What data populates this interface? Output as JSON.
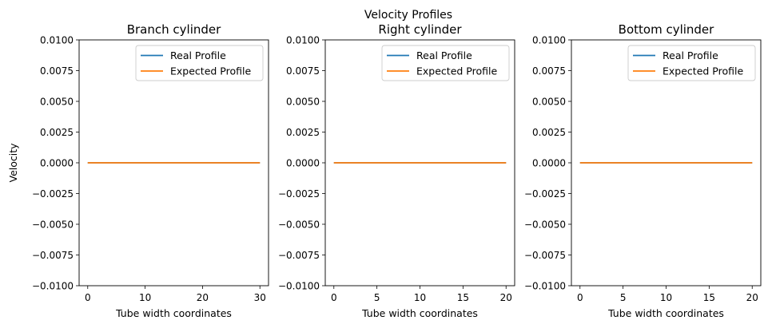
{
  "figure": {
    "suptitle": "Velocity Profiles"
  },
  "legend_labels": [
    "Real Profile",
    "Expected Profile"
  ],
  "colors": {
    "real": "#1f77b4",
    "expected": "#ff7f0e"
  },
  "chart_data": [
    {
      "type": "line",
      "title": "Branch cylinder",
      "xlabel": "Tube width coordinates",
      "ylabel": "Velocity",
      "xlim": [
        -1.5,
        31.5
      ],
      "ylim": [
        -0.01,
        0.01
      ],
      "xticks": [
        0,
        10,
        20,
        30
      ],
      "yticks": [
        -0.01,
        -0.0075,
        -0.005,
        -0.0025,
        0.0,
        0.0025,
        0.005,
        0.0075,
        0.01
      ],
      "ytick_labels": [
        "−0.0100",
        "−0.0075",
        "−0.0050",
        "−0.0025",
        "0.0000",
        "0.0025",
        "0.0050",
        "0.0075",
        "0.0100"
      ],
      "grid": false,
      "legend": "upper-right",
      "series": [
        {
          "name": "Real Profile",
          "color": "#1f77b4",
          "x": [
            0,
            30
          ],
          "y": [
            0,
            0
          ]
        },
        {
          "name": "Expected Profile",
          "color": "#ff7f0e",
          "x": [
            0,
            30
          ],
          "y": [
            0,
            0
          ]
        }
      ]
    },
    {
      "type": "line",
      "title": "Right cylinder",
      "xlabel": "Tube width coordinates",
      "ylabel": "",
      "xlim": [
        -1,
        21
      ],
      "ylim": [
        -0.01,
        0.01
      ],
      "xticks": [
        0,
        5,
        10,
        15,
        20
      ],
      "yticks": [
        -0.01,
        -0.0075,
        -0.005,
        -0.0025,
        0.0,
        0.0025,
        0.005,
        0.0075,
        0.01
      ],
      "ytick_labels": [
        "−0.0100",
        "−0.0075",
        "−0.0050",
        "−0.0025",
        "0.0000",
        "0.0025",
        "0.0050",
        "0.0075",
        "0.0100"
      ],
      "grid": false,
      "legend": "upper-right",
      "series": [
        {
          "name": "Real Profile",
          "color": "#1f77b4",
          "x": [
            0,
            20
          ],
          "y": [
            0,
            0
          ]
        },
        {
          "name": "Expected Profile",
          "color": "#ff7f0e",
          "x": [
            0,
            20
          ],
          "y": [
            0,
            0
          ]
        }
      ]
    },
    {
      "type": "line",
      "title": "Bottom cylinder",
      "xlabel": "Tube width coordinates",
      "ylabel": "",
      "xlim": [
        -1,
        21
      ],
      "ylim": [
        -0.01,
        0.01
      ],
      "xticks": [
        0,
        5,
        10,
        15,
        20
      ],
      "yticks": [
        -0.01,
        -0.0075,
        -0.005,
        -0.0025,
        0.0,
        0.0025,
        0.005,
        0.0075,
        0.01
      ],
      "ytick_labels": [
        "−0.0100",
        "−0.0075",
        "−0.0050",
        "−0.0025",
        "0.0000",
        "0.0025",
        "0.0050",
        "0.0075",
        "0.0100"
      ],
      "grid": false,
      "legend": "upper-right",
      "series": [
        {
          "name": "Real Profile",
          "color": "#1f77b4",
          "x": [
            0,
            20
          ],
          "y": [
            0,
            0
          ]
        },
        {
          "name": "Expected Profile",
          "color": "#ff7f0e",
          "x": [
            0,
            20
          ],
          "y": [
            0,
            0
          ]
        }
      ]
    }
  ]
}
